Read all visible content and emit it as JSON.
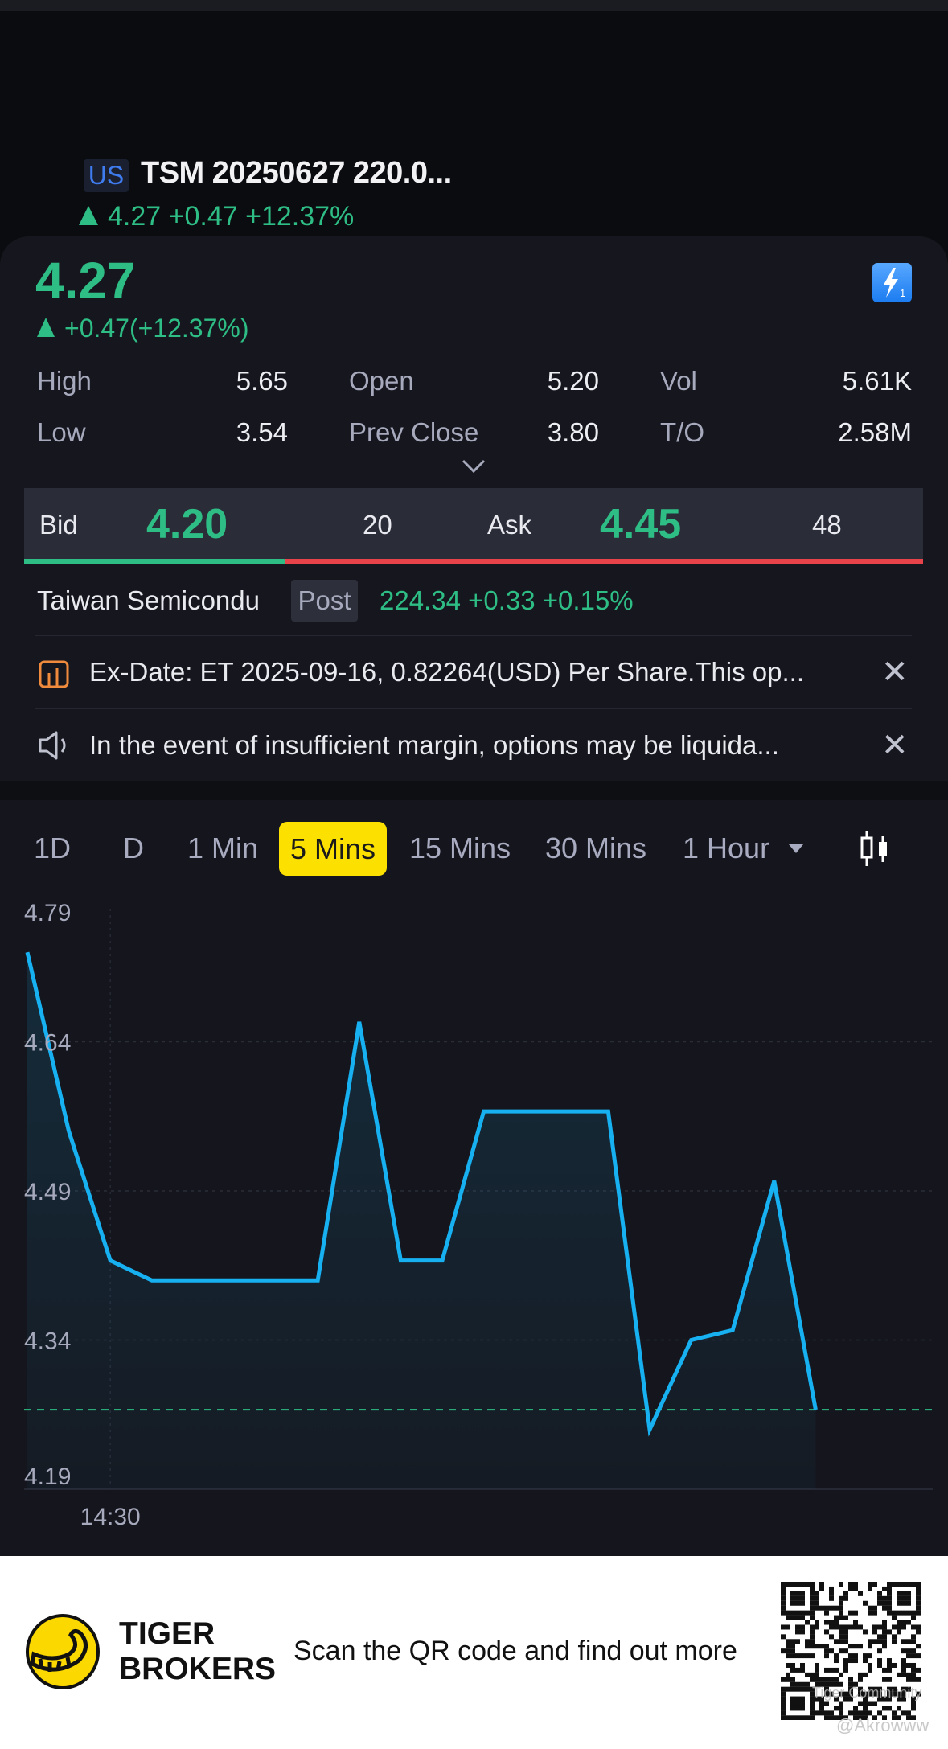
{
  "header": {
    "market_badge": "US",
    "title": "TSM 20250627 220.0...",
    "quote_line": "4.27 +0.47 +12.37%"
  },
  "quote": {
    "last_price": "4.27",
    "change": "+0.47(+12.37%)",
    "stats": [
      {
        "label": "High",
        "value": "5.65"
      },
      {
        "label": "Open",
        "value": "5.20"
      },
      {
        "label": "Vol",
        "value": "5.61K"
      },
      {
        "label": "Low",
        "value": "3.54"
      },
      {
        "label": "Prev Close",
        "value": "3.80"
      },
      {
        "label": "T/O",
        "value": "2.58M"
      }
    ],
    "bid_label": "Bid",
    "bid_price": "4.20",
    "bid_size": "20",
    "ask_label": "Ask",
    "ask_price": "4.45",
    "ask_size": "48",
    "bid_ratio": 0.29
  },
  "underlying": {
    "name": "Taiwan Semicondu",
    "session": "Post",
    "quote": "224.34 +0.33 +0.15%"
  },
  "notices": [
    {
      "icon": "dividend-chart-icon",
      "text": "Ex-Date: ET 2025-09-16, 0.82264(USD) Per Share.This op..."
    },
    {
      "icon": "speaker-icon",
      "text": "In the event of insufficient margin, options may be liquida..."
    }
  ],
  "periods": {
    "items": [
      "1D",
      "D",
      "1 Min",
      "5 Mins",
      "15 Mins",
      "30 Mins",
      "1 Hour"
    ],
    "active": "5 Mins"
  },
  "colors": {
    "up": "#2ebd85",
    "down": "#e8434b",
    "line": "#17b1f2",
    "accent": "#fce100"
  },
  "chart_data": {
    "type": "area",
    "y_ticks": [
      "4.79",
      "4.64",
      "4.49",
      "4.34",
      "4.19"
    ],
    "ylim": [
      4.19,
      4.79
    ],
    "x_ticks": [
      {
        "index": 2,
        "label": "14:30"
      }
    ],
    "values": [
      4.73,
      4.55,
      4.42,
      4.4,
      4.4,
      4.4,
      4.4,
      4.4,
      4.66,
      4.42,
      4.42,
      4.57,
      4.57,
      4.57,
      4.57,
      4.25,
      4.34,
      4.35,
      4.5,
      4.27
    ],
    "reference_line": 4.27,
    "grid": true
  },
  "footer": {
    "brand_line1": "TIGER",
    "brand_line2": "BROKERS",
    "cta": "Scan the QR code and find out more",
    "watermark": "@Akrowww",
    "qr_watermark": "Tiger Community"
  }
}
